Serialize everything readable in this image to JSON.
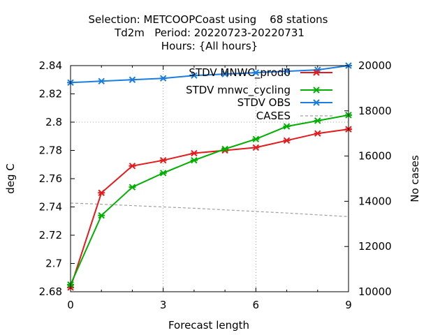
{
  "chart_data": {
    "type": "line",
    "title_lines": [
      "Selection: METCOOPCoast using    68 stations",
      "Td2m   Period: 20220723-20220731",
      "Hours: {All hours}"
    ],
    "xlabel": "Forecast length",
    "ylabel": "deg C",
    "y2label": "No cases",
    "xlim": [
      0,
      9
    ],
    "ylim": [
      2.68,
      2.84
    ],
    "y2lim": [
      10000,
      20000
    ],
    "x_ticks": [
      "0",
      "3",
      "6",
      "9"
    ],
    "y_ticks": [
      "2.68",
      "2.7",
      "2.72",
      "2.74",
      "2.76",
      "2.78",
      "2.8",
      "2.82",
      "2.84"
    ],
    "y2_ticks": [
      "10000",
      "12000",
      "14000",
      "16000",
      "18000",
      "20000"
    ],
    "grid": true,
    "legend_position": "top-right",
    "x": [
      0,
      1,
      2,
      3,
      4,
      5,
      6,
      7,
      8,
      9
    ],
    "series": [
      {
        "name": "STDV MNWC_prod0",
        "color": "#e41a1c",
        "axis": "left",
        "marker": "x",
        "values": [
          2.683,
          2.75,
          2.769,
          2.773,
          2.778,
          2.78,
          2.782,
          2.787,
          2.792,
          2.795
        ]
      },
      {
        "name": "STDV mnwc_cycling",
        "color": "#00b000",
        "axis": "left",
        "marker": "x",
        "values": [
          2.685,
          2.734,
          2.754,
          2.764,
          2.773,
          2.781,
          2.788,
          2.797,
          2.801,
          2.805
        ]
      },
      {
        "name": "STDV OBS",
        "color": "#1a7de0",
        "axis": "left",
        "marker": "x",
        "values": [
          2.828,
          2.829,
          2.83,
          2.831,
          2.833,
          2.834,
          2.835,
          2.836,
          2.837,
          2.84
        ]
      },
      {
        "name": "CASES",
        "color": "#a0a0a0",
        "axis": "right",
        "marker": "none",
        "dashed": true,
        "values": [
          13920,
          13870,
          13810,
          13750,
          13690,
          13620,
          13550,
          13480,
          13400,
          13320
        ]
      }
    ]
  }
}
